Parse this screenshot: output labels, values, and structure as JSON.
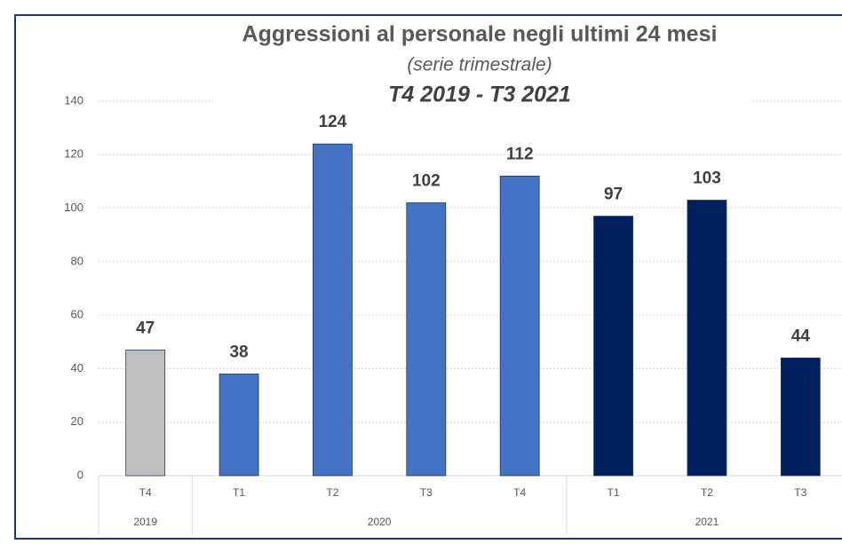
{
  "chart_data": {
    "type": "bar",
    "title": "Aggressioni al personale negli ultimi 24 mesi",
    "subtitle": "(serie trimestrale)",
    "subtitle2": "T4 2019 - T3 2021",
    "categories": [
      "T4",
      "T1",
      "T2",
      "T3",
      "T4",
      "T1",
      "T2",
      "T3"
    ],
    "groups": [
      {
        "label": "2019",
        "count": 1
      },
      {
        "label": "2020",
        "count": 4
      },
      {
        "label": "2021",
        "count": 3
      }
    ],
    "values": [
      47,
      38,
      124,
      102,
      112,
      97,
      103,
      44
    ],
    "colors": [
      "#bfbfbf",
      "#4472c4",
      "#4472c4",
      "#4472c4",
      "#4472c4",
      "#002060",
      "#002060",
      "#002060"
    ],
    "ylim": [
      0,
      140
    ],
    "yticks": [
      0,
      20,
      40,
      60,
      80,
      100,
      120,
      140
    ],
    "grid": true
  }
}
